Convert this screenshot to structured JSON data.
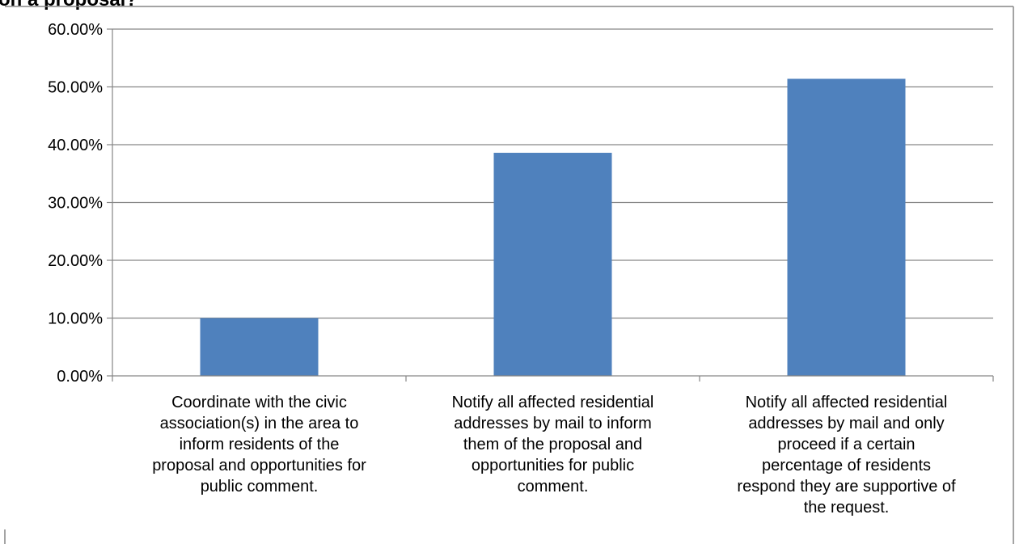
{
  "chart_data": {
    "type": "bar",
    "title": "on a proposal?",
    "categories": [
      "Coordinate with the civic association(s) in the area to inform residents of the proposal and opportunities for public comment.",
      "Notify all affected residential addresses by mail to inform them of the proposal and opportunities for public comment.",
      "Notify all affected residential addresses by mail and only proceed if a certain percentage of residents respond they are supportive of the request."
    ],
    "category_lines": [
      [
        "Coordinate with the civic",
        "association(s) in the area to",
        "inform residents of the",
        "proposal and opportunities for",
        "public comment."
      ],
      [
        "Notify all affected residential",
        "addresses by mail to inform",
        "them of the proposal and",
        "opportunities for public",
        "comment."
      ],
      [
        "Notify all affected residential",
        "addresses by mail and only",
        "proceed if a certain",
        "percentage of residents",
        "respond they are supportive of",
        "the request."
      ]
    ],
    "series": [
      {
        "values": [
          10.0,
          38.6,
          51.4
        ]
      }
    ],
    "ylim": [
      0,
      60
    ],
    "yticks": [
      "0.00%",
      "10.00%",
      "20.00%",
      "30.00%",
      "40.00%",
      "50.00%",
      "60.00%"
    ],
    "xlabel": "",
    "ylabel": "",
    "grid": true,
    "bar_color": "#4f81bd",
    "grid_color": "#868686"
  }
}
